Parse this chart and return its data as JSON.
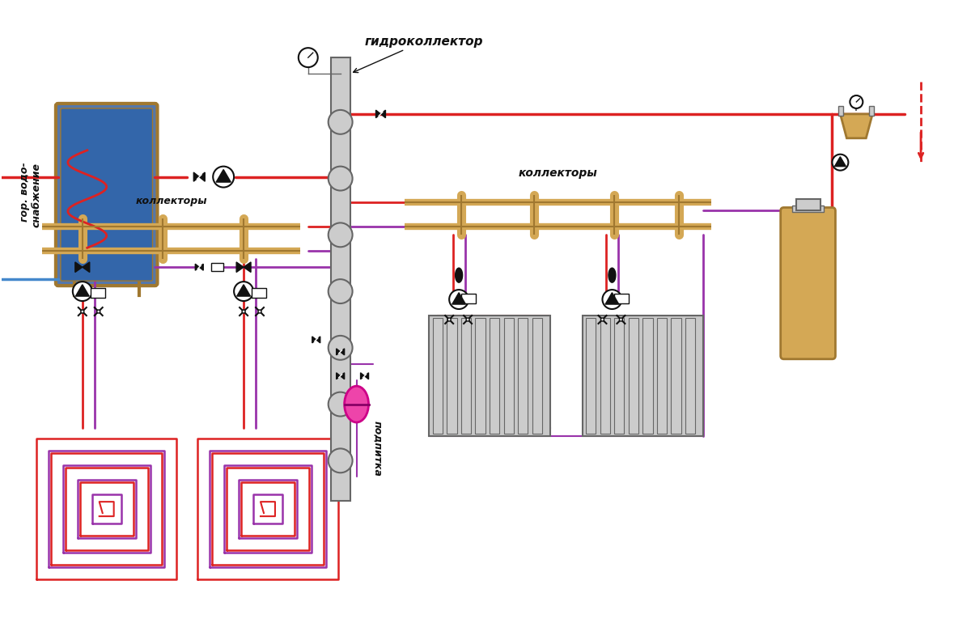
{
  "bg_color": "#ffffff",
  "red": "#cc0000",
  "red_pipe": "#dd2222",
  "blue": "#4488cc",
  "purple": "#9933aa",
  "gold": "#d4a855",
  "gold_dark": "#a07830",
  "gray": "#999999",
  "gray_light": "#cccccc",
  "gray_dark": "#666666",
  "black": "#111111",
  "pink": "#ee44aa",
  "text_color": "#111111",
  "label_gidro": "гидроколлектор",
  "label_kollektory1": "коллекторы",
  "label_kollektory2": "коллекторы",
  "label_gvs": "гор. водо-\nснабжение",
  "label_podpitka": "подпитка"
}
